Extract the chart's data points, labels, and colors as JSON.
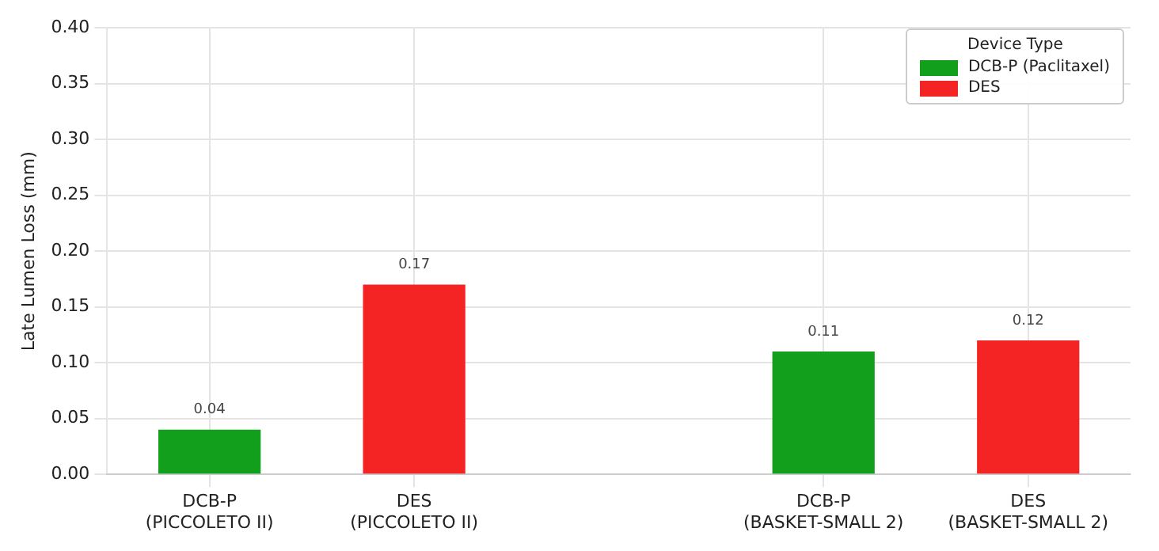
{
  "chart_data": {
    "type": "bar",
    "ylabel": "Late Lumen Loss (mm)",
    "legend_title": "Device Type",
    "categories": [
      "DCB-P\n(PICCOLETO II)",
      "DES\n(PICCOLETO II)",
      null,
      "DCB-P\n(BASKET-SMALL 2)",
      "DES\n(BASKET-SMALL 2)"
    ],
    "series": [
      {
        "name": "DCB-P (Paclitaxel)",
        "color": "#12a01c",
        "values": [
          0.04,
          null,
          null,
          0.11,
          null
        ]
      },
      {
        "name": "DES",
        "color": "#f42424",
        "values": [
          null,
          0.17,
          null,
          null,
          0.12
        ]
      }
    ],
    "ylim": [
      0,
      0.4
    ],
    "yticks": [
      {
        "value": 0,
        "label": "0.00"
      },
      {
        "value": 0.05,
        "label": "0.05"
      },
      {
        "value": 0.1,
        "label": "0.10"
      },
      {
        "value": 0.15,
        "label": "0.15"
      },
      {
        "value": 0.2,
        "label": "0.20"
      },
      {
        "value": 0.25,
        "label": "0.25"
      },
      {
        "value": 0.3,
        "label": "0.30"
      },
      {
        "value": 0.35,
        "label": "0.35"
      },
      {
        "value": 0.4,
        "label": "0.40"
      }
    ],
    "grid": true,
    "legend": "top right",
    "data_labels": true
  }
}
